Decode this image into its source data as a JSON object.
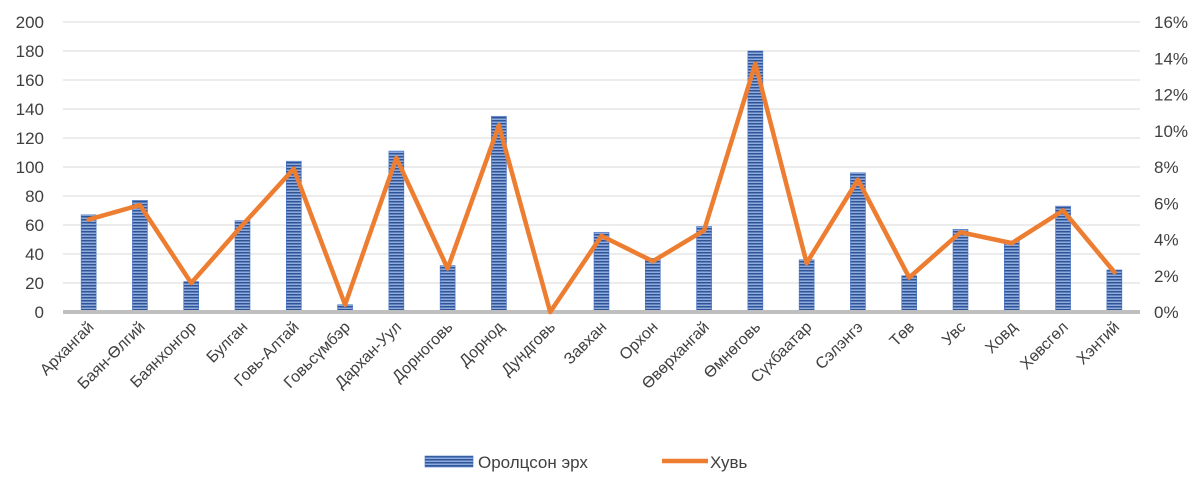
{
  "chart_data": {
    "type": "bar",
    "categories": [
      "Архангай",
      "Баян-Өлгий",
      "Баянхонгор",
      "Булган",
      "Говь-Алтай",
      "Говьсүмбэр",
      "Дархан-Уул",
      "Дорноговь",
      "Дорнод",
      "Дундговь",
      "Завхан",
      "Орхон",
      "Өвөрхангай",
      "Өмнөговь",
      "Сүхбаатар",
      "Сэлэнгэ",
      "Төв",
      "Увс",
      "Ховд",
      "Хөвсгөл",
      "Хэнтий"
    ],
    "series": [
      {
        "name": "Оролцсон эрх",
        "type": "bar",
        "axis": "left",
        "color": "#4472C4",
        "values": [
          67,
          77,
          21,
          63,
          104,
          5,
          111,
          32,
          135,
          0,
          55,
          37,
          59,
          180,
          36,
          96,
          25,
          57,
          49,
          73,
          29
        ]
      },
      {
        "name": "Хувь",
        "type": "line",
        "axis": "right",
        "color": "#ED7D31",
        "values": [
          5.1,
          5.9,
          1.6,
          4.8,
          7.9,
          0.4,
          8.5,
          2.4,
          10.3,
          0,
          4.2,
          2.8,
          4.5,
          13.7,
          2.7,
          7.3,
          1.9,
          4.4,
          3.8,
          5.6,
          2.2
        ]
      }
    ],
    "y_left": {
      "ylim": [
        0,
        200
      ],
      "ticks": [
        "0",
        "20",
        "40",
        "60",
        "80",
        "100",
        "120",
        "140",
        "160",
        "180",
        "200"
      ]
    },
    "y_right": {
      "ylim": [
        0,
        16
      ],
      "ticks": [
        "0%",
        "2%",
        "4%",
        "6%",
        "8%",
        "10%",
        "12%",
        "14%",
        "16%"
      ]
    },
    "grid": true,
    "legend_position": "bottom"
  }
}
